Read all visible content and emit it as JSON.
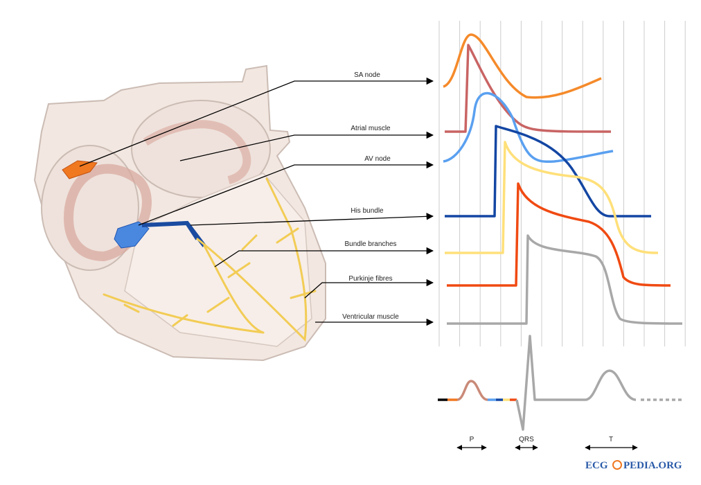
{
  "labels": [
    "SA node",
    "Atrial muscle",
    "AV node",
    "His bundle",
    "Bundle branches",
    "Purkinje fibres",
    "Ventricular muscle"
  ],
  "ecg_labels": [
    "P",
    "QRS",
    "T"
  ],
  "logo": {
    "left": "ECG",
    "right": "PEDIA.ORG"
  }
}
